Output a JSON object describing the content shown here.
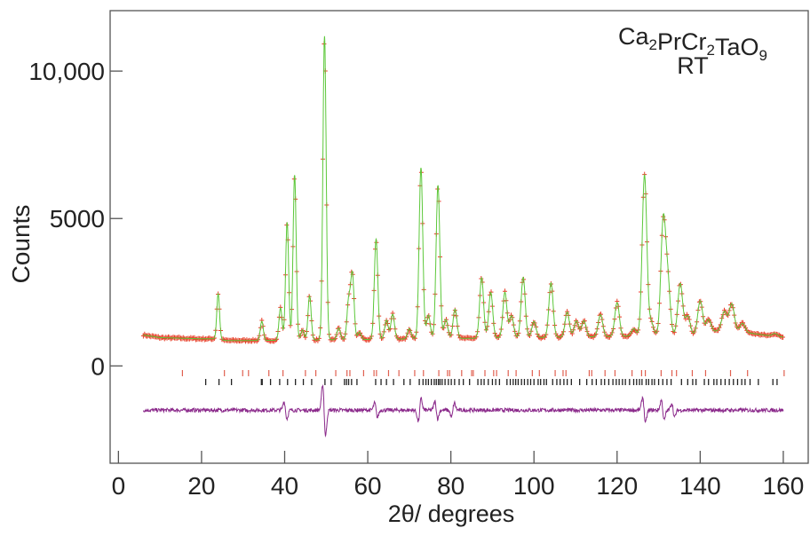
{
  "chart_data": {
    "type": "line",
    "title": "Ca2PrCr2TaO9",
    "title_parts": {
      "main": [
        "Ca",
        "PrCr",
        "TaO"
      ],
      "subs": [
        "2",
        "2",
        "9"
      ]
    },
    "subtitle": "RT",
    "xlabel": "2θ/ degrees",
    "ylabel": "Counts",
    "xlim": [
      -2,
      166
    ],
    "ylim": [
      -3300,
      12050
    ],
    "xticks": [
      0,
      20,
      40,
      60,
      80,
      100,
      120,
      140,
      160
    ],
    "xtick_labels": [
      "0",
      "20",
      "40",
      "60",
      "80",
      "100",
      "120",
      "140",
      "160"
    ],
    "yticks": [
      0,
      5000,
      10000
    ],
    "ytick_labels": [
      "0",
      "5000",
      "10,000"
    ],
    "grid": false,
    "x_range_data": [
      6,
      160
    ],
    "colors": {
      "observed": "#e8402a",
      "calculated": "#5cc83a",
      "difference": "#8b2a8b",
      "phase1_ticks": "#e06050",
      "phase2_ticks": "#222222"
    },
    "series": [
      {
        "name": "observed",
        "style": "red crosses"
      },
      {
        "name": "calculated",
        "style": "green line"
      },
      {
        "name": "difference",
        "style": "purple line",
        "offset": -1500
      }
    ],
    "background": [
      [
        6,
        1050
      ],
      [
        10,
        960
      ],
      [
        20,
        920
      ],
      [
        23,
        920
      ],
      [
        26,
        860
      ],
      [
        40,
        870
      ],
      [
        60,
        900
      ],
      [
        80,
        930
      ],
      [
        100,
        960
      ],
      [
        120,
        1000
      ],
      [
        140,
        1060
      ],
      [
        146,
        1250
      ],
      [
        150,
        1150
      ],
      [
        158,
        1000
      ],
      [
        160,
        980
      ]
    ],
    "peaks": [
      [
        24,
        1550
      ],
      [
        34.5,
        650
      ],
      [
        39,
        1100
      ],
      [
        40.6,
        4000
      ],
      [
        42.4,
        5600
      ],
      [
        44.3,
        350
      ],
      [
        46,
        1500
      ],
      [
        49.6,
        10300
      ],
      [
        53,
        400
      ],
      [
        55.4,
        1300
      ],
      [
        56.3,
        2200
      ],
      [
        58,
        250
      ],
      [
        62,
        3400
      ],
      [
        64.5,
        650
      ],
      [
        66,
        850
      ],
      [
        70,
        350
      ],
      [
        72.8,
        5800
      ],
      [
        74.6,
        800
      ],
      [
        76.9,
        5200
      ],
      [
        78.8,
        650
      ],
      [
        81,
        1000
      ],
      [
        87.4,
        2050
      ],
      [
        89.6,
        1550
      ],
      [
        93,
        1550
      ],
      [
        94.6,
        750
      ],
      [
        97.4,
        2050
      ],
      [
        100,
        550
      ],
      [
        104.1,
        1850
      ],
      [
        108,
        850
      ],
      [
        110.2,
        550
      ],
      [
        112,
        550
      ],
      [
        116,
        750
      ],
      [
        120,
        1150
      ],
      [
        124,
        250
      ],
      [
        126.6,
        5450
      ],
      [
        128.2,
        450
      ],
      [
        131.1,
        3800
      ],
      [
        132.2,
        1800
      ],
      [
        135.2,
        1750
      ],
      [
        137,
        650
      ],
      [
        140,
        1150
      ],
      [
        142,
        450
      ],
      [
        145.8,
        600
      ],
      [
        147.6,
        900
      ],
      [
        150.2,
        300
      ],
      [
        158,
        100
      ]
    ],
    "difference_features": [
      [
        40.2,
        300
      ],
      [
        49.5,
        900
      ],
      [
        62,
        250
      ],
      [
        72.5,
        -400
      ],
      [
        76.5,
        300
      ],
      [
        80.5,
        -250
      ],
      [
        126.5,
        450
      ],
      [
        131,
        350
      ],
      [
        133.5,
        250
      ]
    ],
    "phase1_reflections": [
      15.4,
      25.5,
      29.9,
      31.3,
      36.2,
      39.6,
      45,
      47.5,
      52.3,
      55,
      55.7,
      59,
      61.5,
      62.1,
      65,
      67.5,
      71.3,
      73.4,
      77.1,
      79.2,
      79.7,
      82.6,
      85,
      85.4,
      88.2,
      90.3,
      91,
      93.8,
      95.7,
      99.6,
      101.3,
      105.1,
      107,
      107.7,
      113.3,
      113.9,
      117.1,
      119.5,
      123.6,
      125.9,
      126.8,
      130.6,
      133.2,
      134.3,
      138.1,
      141.3,
      147.3,
      151.4,
      160.2
    ],
    "phase2_reflections": [
      21,
      24.2,
      27.2,
      34.4,
      34.6,
      36.6,
      38.8,
      40.7,
      42.6,
      44.5,
      46.5,
      49.7,
      51.2,
      54.4,
      54.9,
      55.4,
      56.1,
      57.4,
      61.9,
      63.2,
      64.5,
      66.2,
      68.7,
      70.2,
      72.4,
      73.3,
      74,
      74.6,
      75.3,
      76,
      76.5,
      77,
      77.4,
      77.9,
      78.6,
      79.4,
      80.1,
      80.9,
      82,
      83,
      84.5,
      86.5,
      87.3,
      88,
      89,
      90,
      90.8,
      91.7,
      93.5,
      94.3,
      95,
      95.6,
      96.2,
      97,
      97.7,
      98.5,
      99.2,
      100,
      101,
      101.6,
      102.4,
      103,
      104.5,
      105.5,
      106.3,
      107.2,
      108,
      109,
      111,
      112.7,
      114,
      115,
      116.2,
      117,
      118,
      119,
      119.8,
      120.5,
      121.3,
      122,
      123,
      124,
      124.7,
      125.4,
      126,
      127,
      127.6,
      128.4,
      129,
      130,
      131,
      132,
      133,
      135.5,
      137,
      138.2,
      139,
      141,
      142,
      143.3,
      144,
      145,
      146,
      147,
      148,
      149,
      150,
      150.8,
      152,
      154,
      157.5,
      158.5
    ]
  }
}
